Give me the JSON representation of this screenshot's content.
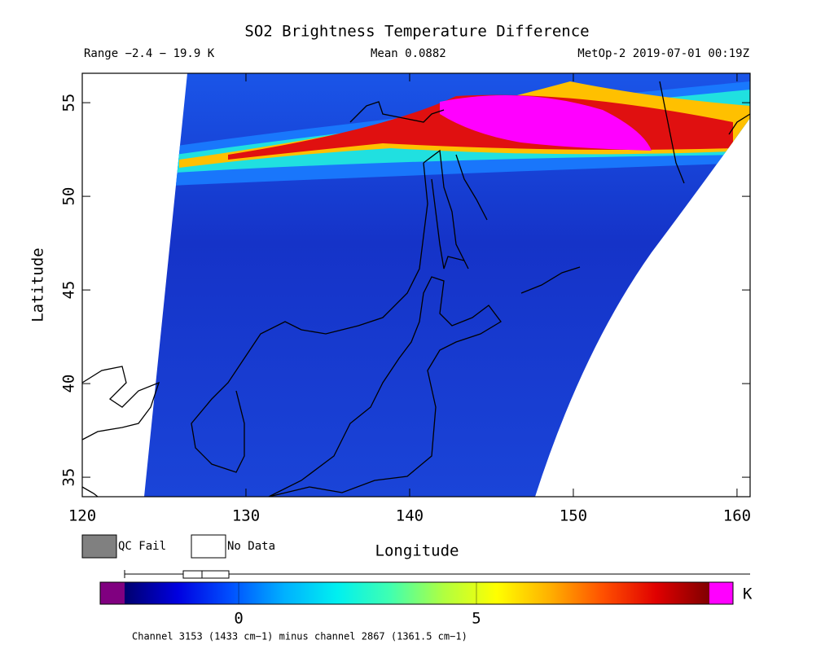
{
  "chart_data": {
    "type": "swath-map",
    "title": "SO2 Brightness Temperature Difference",
    "range_label": "Range −2.4 − 19.9 K",
    "mean_label": "Mean 0.0882",
    "satellite_label": "MetOp-2 2019-07-01 00:19Z",
    "xlabel": "Longitude",
    "ylabel": "Latitude",
    "xlim": [
      120,
      160.8
    ],
    "xticks": [
      120,
      130,
      140,
      150,
      160
    ],
    "ylim": [
      33.96,
      56.57
    ],
    "yticks": [
      35,
      40,
      45,
      50,
      55
    ],
    "legend": [
      {
        "name": "QC Fail",
        "color": "#808080"
      },
      {
        "name": "No Data",
        "color": "#ffffff"
      }
    ],
    "colorbar": {
      "lim": [
        -2.4,
        9.9
      ],
      "ticks": [
        0,
        5
      ],
      "unit": "K",
      "caption": "Channel 3153 (1433 cm−1) minus channel 2867 (1361.5 cm−1)",
      "colors": [
        "#00006e",
        "#0000e0",
        "#0050ff",
        "#00b0ff",
        "#00f0f0",
        "#40ffb0",
        "#b0ff40",
        "#ffff00",
        "#ffb000",
        "#ff5000",
        "#e00000",
        "#800000"
      ],
      "under_color": "#800080",
      "over_color": "#ff00ff"
    }
  }
}
